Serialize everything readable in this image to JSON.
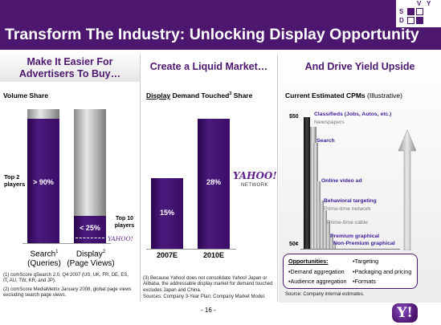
{
  "header": {
    "title": "Transform The Industry: Unlocking Display Opportunity",
    "logo_letters": [
      "V",
      "Y",
      "S",
      "D"
    ]
  },
  "col1": {
    "heading_line1": "Make It Easier For",
    "heading_line2": "Advertisers To Buy…",
    "subhead": "Volume Share",
    "top2_label_line1": "Top 2",
    "top2_label_line2": "players",
    "search_bar_value": "> 90%",
    "display_bar_value": "< 25%",
    "top10_label_line1": "Top 10",
    "top10_label_line2": "players",
    "yahoo_mini": "YAHOO!",
    "search_label": "Search",
    "search_sup": "1",
    "search_sub": "(Queries)",
    "display_label": "Display",
    "display_sup": "2",
    "display_sub": "(Page Views)",
    "footnote1": "(1)  comScore qSearch 2.0, Q4 2007 (US, UK, FR, DE, ES, IT, AU, TW, KR, and JP).",
    "footnote2": "(2)  comScore MediaMetrix January 2008, global page views excluding search page views."
  },
  "col2": {
    "heading": "Create a Liquid Market…",
    "subhead_underlined": "Display",
    "subhead_rest": " Demand Touched",
    "subhead_sup": "3",
    "subhead_end": " Share",
    "bar1_value": "15%",
    "bar2_value": "28%",
    "bar1_label": "2007E",
    "bar2_label": "2010E",
    "yahoo_logo": "YAHOO!",
    "yahoo_network": "NETWORK",
    "footnote3": "(3)  Because Yahoo! does not consolidate Yahoo! Japan or Alibaba, the addressable display market for demand touched excludes Japan and China.",
    "sources": "Sources: Company 3-Year Plan; Company Market Model."
  },
  "col3": {
    "heading": "And Drive Yield Upside",
    "subhead_bold": "Current Estimated CPMs",
    "subhead_rest": " (Illustrative)",
    "axis_top": "$50",
    "axis_bottom": "50¢",
    "labels": {
      "classifieds": "Classifieds (Jobs, Autos, etc.)",
      "newspapers": "Newspapers",
      "search": "Search",
      "online_video": "Online video ad",
      "behavioral": "Behavioral targeting",
      "primetime_network": "Prime-time network",
      "primetime_cable": "Prime-time cable",
      "premium_graphical": "Premium graphical",
      "non_premium_graphical": "Non-Premium graphical"
    },
    "opportunities_title": "Opportunities:",
    "opportunities": [
      "•Demand aggregation",
      "•Audience aggregation",
      "•Targeting",
      "•Packaging and pricing",
      "•Formats"
    ],
    "source": "Source: Company internal estimates."
  },
  "footer": {
    "page": "- 16 -",
    "badge": "Y!"
  },
  "chart_data": [
    {
      "type": "bar",
      "title": "Volume Share",
      "categories": [
        "Search (Queries)",
        "Display (Page Views)"
      ],
      "series": [
        {
          "values": [
            90,
            25
          ]
        }
      ],
      "ylim": [
        0,
        100
      ]
    },
    {
      "type": "bar",
      "title": "Display Demand Touched Share",
      "categories": [
        "2007E",
        "2010E"
      ],
      "series": [
        {
          "values": [
            15,
            28
          ]
        }
      ],
      "ylim": [
        0,
        35
      ]
    }
  ]
}
